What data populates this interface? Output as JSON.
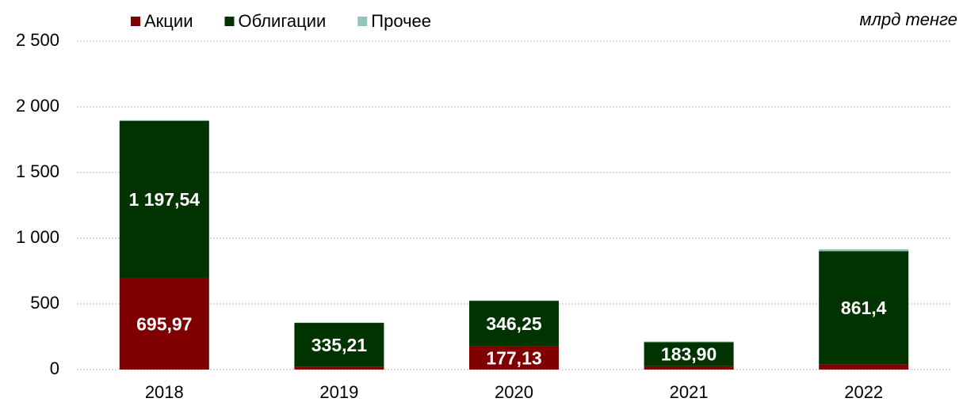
{
  "chart_data": {
    "type": "stacked_bar",
    "y_label": "млрд тенге",
    "categories": [
      "2018",
      "2019",
      "2020",
      "2021",
      "2022"
    ],
    "series": [
      {
        "name": "Акции",
        "color": "#7f0000",
        "values": [
          695.97,
          20,
          177.13,
          25,
          40
        ],
        "value_labels": [
          "695,97",
          null,
          "177,13",
          null,
          null
        ]
      },
      {
        "name": "Облигации",
        "color": "#003300",
        "values": [
          1197.54,
          335.21,
          346.25,
          183.9,
          861.4
        ],
        "value_labels": [
          "1 197,54",
          "335,21",
          "346,25",
          "183,90",
          "861,4"
        ]
      },
      {
        "name": "Прочее",
        "color": "#93c4bc",
        "values": [
          5,
          3,
          3,
          5,
          15
        ]
      }
    ],
    "ylim": [
      0,
      2500
    ],
    "yticks": [
      0,
      500,
      {
        "value": 1000,
        "label": "1 000"
      },
      {
        "value": 1500,
        "label": "1 500"
      },
      {
        "value": 2000,
        "label": "2 000"
      },
      {
        "value": 2500,
        "label": "2 500"
      }
    ],
    "grid": true,
    "legend": "top"
  }
}
